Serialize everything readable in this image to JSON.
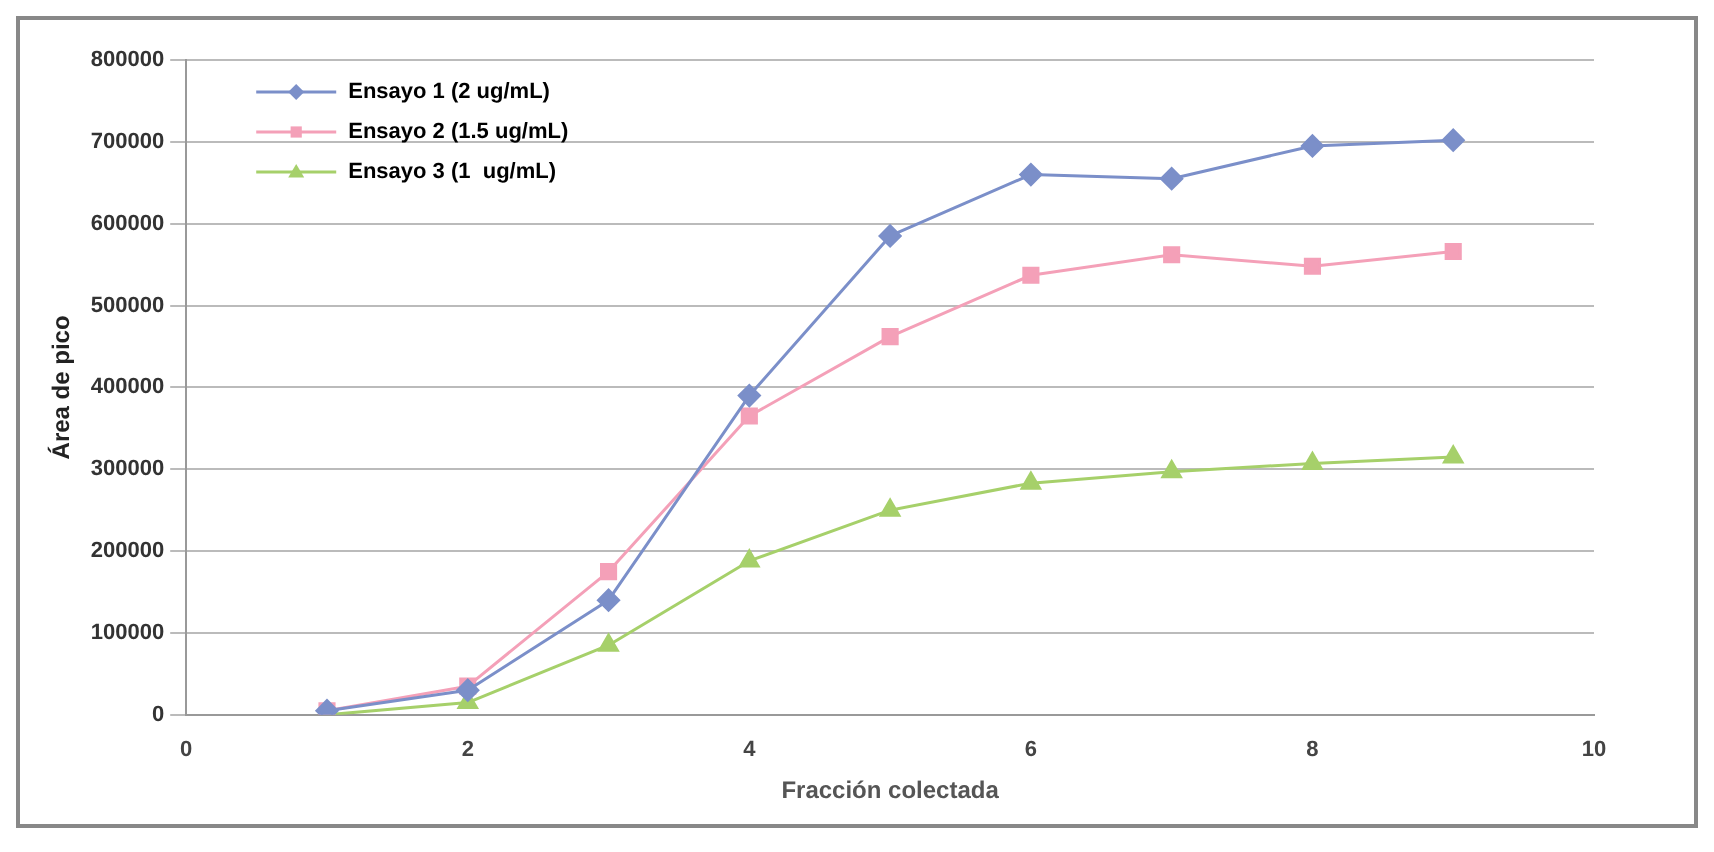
{
  "chart_data": {
    "type": "line",
    "xlabel": "Fracción colectada",
    "ylabel": "Área de pico",
    "x": [
      1,
      2,
      3,
      4,
      5,
      6,
      7,
      8,
      9
    ],
    "series": [
      {
        "name": "Ensayo 1 (2 ug/mL)",
        "color": "#7b8fc9",
        "marker": "diamond",
        "values": [
          5000,
          30000,
          140000,
          390000,
          585000,
          660000,
          655000,
          695000,
          702000
        ]
      },
      {
        "name": "Ensayo 2 (1.5 ug/mL)",
        "color": "#f4a0b8",
        "marker": "square",
        "values": [
          5000,
          35000,
          175000,
          365000,
          462000,
          537000,
          562000,
          548000,
          566000
        ]
      },
      {
        "name": "Ensayo 3 (1  ug/mL)",
        "color": "#a6d06a",
        "marker": "triangle",
        "values": [
          0,
          15000,
          85000,
          188000,
          250000,
          283000,
          297000,
          307000,
          315000
        ]
      }
    ],
    "xlim": [
      0,
      10
    ],
    "xticks": [
      0,
      2,
      4,
      6,
      8,
      10
    ],
    "ylim": [
      0,
      800000
    ],
    "yticks": [
      0,
      100000,
      200000,
      300000,
      400000,
      500000,
      600000,
      700000,
      800000
    ],
    "grid": "y",
    "legend": "top left"
  }
}
